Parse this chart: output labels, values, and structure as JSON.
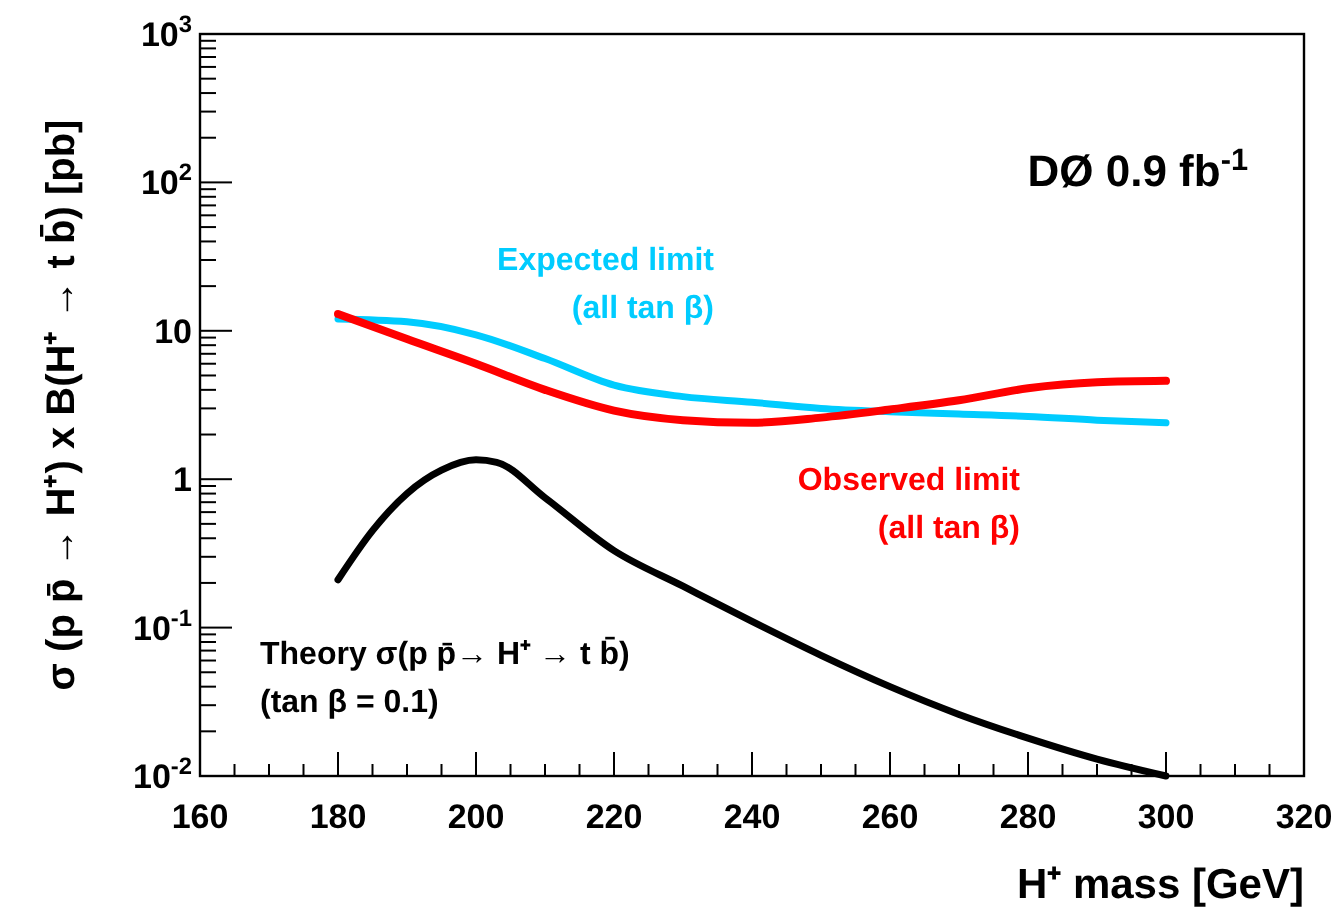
{
  "chart_data": {
    "type": "line",
    "xlabel": "H⁺ mass [GeV]",
    "ylabel": "σ (p p̄ → H⁺) x B(H⁺ → t b̄) [pb]",
    "log": "y",
    "xlim": [
      160,
      320
    ],
    "xticks": [
      160,
      {
        "value": 165,
        "label": null
      },
      {
        "value": 170,
        "label": null
      },
      {
        "value": 175,
        "label": null
      },
      180,
      {
        "value": 185,
        "label": null
      },
      {
        "value": 190,
        "label": null
      },
      {
        "value": 195,
        "label": null
      },
      200,
      {
        "value": 205,
        "label": null
      },
      {
        "value": 210,
        "label": null
      },
      {
        "value": 215,
        "label": null
      },
      220,
      {
        "value": 225,
        "label": null
      },
      {
        "value": 230,
        "label": null
      },
      {
        "value": 235,
        "label": null
      },
      240,
      {
        "value": 245,
        "label": null
      },
      {
        "value": 250,
        "label": null
      },
      {
        "value": 255,
        "label": null
      },
      260,
      {
        "value": 265,
        "label": null
      },
      {
        "value": 270,
        "label": null
      },
      {
        "value": 275,
        "label": null
      },
      280,
      {
        "value": 285,
        "label": null
      },
      {
        "value": 290,
        "label": null
      },
      {
        "value": 295,
        "label": null
      },
      300,
      {
        "value": 305,
        "label": null
      },
      {
        "value": 310,
        "label": null
      },
      {
        "value": 315,
        "label": null
      },
      320
    ],
    "ylim": [
      0.01,
      1000
    ],
    "yticks": [
      {
        "value": 0.01,
        "label": "10$^{-2}$"
      },
      {
        "value": 0.02,
        "label": null
      },
      {
        "value": 0.03,
        "label": null
      },
      {
        "value": 0.04,
        "label": null
      },
      {
        "value": 0.05,
        "label": null
      },
      {
        "value": 0.06,
        "label": null
      },
      {
        "value": 0.07,
        "label": null
      },
      {
        "value": 0.08,
        "label": null
      },
      {
        "value": 0.09,
        "label": null
      },
      {
        "value": 0.1,
        "label": "10$^{-1}$"
      },
      {
        "value": 0.2,
        "label": null
      },
      {
        "value": 0.3,
        "label": null
      },
      {
        "value": 0.4,
        "label": null
      },
      {
        "value": 0.5,
        "label": null
      },
      {
        "value": 0.6,
        "label": null
      },
      {
        "value": 0.7,
        "label": null
      },
      {
        "value": 0.8,
        "label": null
      },
      {
        "value": 0.9,
        "label": null
      },
      1,
      {
        "value": 2,
        "label": null
      },
      {
        "value": 3,
        "label": null
      },
      {
        "value": 4,
        "label": null
      },
      {
        "value": 5,
        "label": null
      },
      {
        "value": 6,
        "label": null
      },
      {
        "value": 7,
        "label": null
      },
      {
        "value": 8,
        "label": null
      },
      {
        "value": 9,
        "label": null
      },
      10,
      {
        "value": 20,
        "label": null
      },
      {
        "value": 30,
        "label": null
      },
      {
        "value": 40,
        "label": null
      },
      {
        "value": 50,
        "label": null
      },
      {
        "value": 60,
        "label": null
      },
      {
        "value": 70,
        "label": null
      },
      {
        "value": 80,
        "label": null
      },
      {
        "value": 90,
        "label": null
      },
      {
        "value": 100,
        "label": "10$^{2}$"
      },
      {
        "value": 200,
        "label": null
      },
      {
        "value": 300,
        "label": null
      },
      {
        "value": 400,
        "label": null
      },
      {
        "value": 500,
        "label": null
      },
      {
        "value": 600,
        "label": null
      },
      {
        "value": 700,
        "label": null
      },
      {
        "value": 800,
        "label": null
      },
      {
        "value": 900,
        "label": null
      },
      {
        "value": 1000,
        "label": "10$^{3}$"
      }
    ],
    "grid": false,
    "line_style": "solid",
    "marker": "none",
    "series": [
      {
        "color": "#00ccff",
        "x": [
          180,
          190,
          200,
          210,
          220,
          230,
          240,
          250,
          260,
          270,
          280,
          290,
          300
        ],
        "values": [
          12,
          11.5,
          9.4,
          6.5,
          4.3,
          3.6,
          3.3,
          3.0,
          2.85,
          2.75,
          2.65,
          2.5,
          2.4
        ]
      },
      {
        "color": "#ff0000",
        "x": [
          180,
          190,
          200,
          210,
          220,
          230,
          240,
          250,
          260,
          270,
          280,
          290,
          300
        ],
        "values": [
          13,
          8.8,
          6.0,
          4.0,
          2.9,
          2.5,
          2.4,
          2.6,
          2.95,
          3.4,
          4.1,
          4.5,
          4.6
        ]
      },
      {
        "color": "#000000",
        "x": [
          180,
          185,
          190,
          195,
          200,
          203,
          210,
          220,
          230,
          240,
          250,
          260,
          270,
          280,
          290,
          300
        ],
        "values": [
          0.21,
          0.45,
          0.8,
          1.15,
          1.35,
          1.3,
          0.75,
          0.33,
          0.19,
          0.11,
          0.065,
          0.04,
          0.026,
          0.018,
          0.013,
          0.01
        ]
      }
    ],
    "annotations": [
      "Expected limit\n(all tan β)",
      "Observed limit\n(all tan β)",
      "Theory σ(p p̄→ H⁺ → t b̄)\n(tan β = 0.1)",
      "DØ 0.9 fb$^{-1}$"
    ]
  }
}
